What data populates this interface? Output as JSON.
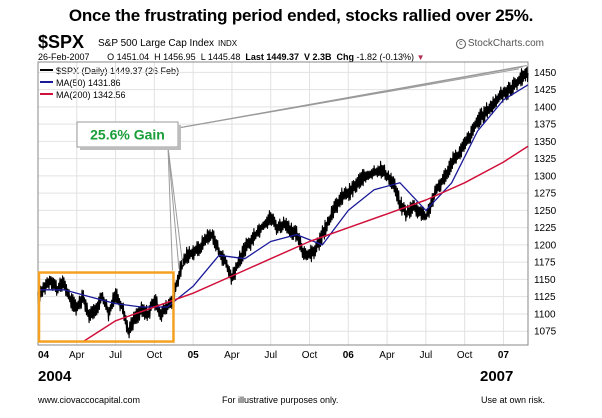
{
  "headline": "Once the frustrating period ended, stocks rallied over 25%.",
  "header": {
    "symbol": "$SPX",
    "name": "S&P 500 Large Cap Index",
    "exchange": "INDX",
    "brand": "StockCharts.com",
    "date": "26-Feb-2007",
    "open": "O 1451.04",
    "high": "H 1456.95",
    "low": "L 1445.48",
    "last": "Last 1449.37",
    "volume": "V 2.3B",
    "change_label": "Chg",
    "change": "-1.82 (-0.13%)"
  },
  "legend": {
    "price": "$SPX (Daily) 1449.37 (26 Feb)",
    "ma50": "MA(50) 1431.86",
    "ma200": "MA(200) 1342.56"
  },
  "annotation": "25.6% Gain",
  "year_start": "2004",
  "year_end": "2007",
  "footer": {
    "left": "www.ciovaccocapital.com",
    "center": "For illustrative purposes only.",
    "right": "Use at own risk."
  },
  "colors": {
    "price": "#000000",
    "ma50": "#1a1a99",
    "ma200": "#d0103a",
    "highlight": "#f5a020",
    "gain_text": "#1a9e3a"
  },
  "chart_data": {
    "type": "line",
    "title": "Once the frustrating period ended, stocks rallied over 25%.",
    "ylim": [
      1055,
      1465
    ],
    "y_ticks": [
      1075,
      1100,
      1125,
      1150,
      1175,
      1200,
      1225,
      1250,
      1275,
      1300,
      1325,
      1350,
      1375,
      1400,
      1425,
      1450
    ],
    "x_ticks": [
      "04",
      "Apr",
      "Jul",
      "Oct",
      "05",
      "Apr",
      "Jul",
      "Oct",
      "06",
      "Apr",
      "Jul",
      "Oct",
      "07"
    ],
    "x_tick_months": [
      0,
      3,
      6,
      9,
      12,
      15,
      18,
      21,
      24,
      27,
      30,
      33,
      36
    ],
    "x_range_months": [
      0,
      37.9
    ],
    "grid": true,
    "highlight_range_months": [
      0,
      10.4
    ],
    "highlight_range_values": [
      1060,
      1160
    ],
    "series": [
      {
        "name": "$SPX (Daily)",
        "x": [
          0,
          0.5,
          1,
          1.5,
          2,
          2.5,
          3,
          3.5,
          4,
          4.5,
          5,
          5.5,
          6,
          6.5,
          7,
          7.5,
          8,
          8.5,
          9,
          9.5,
          10,
          10.5,
          11,
          11.5,
          12,
          12.5,
          13,
          13.5,
          14,
          14.5,
          15,
          15.5,
          16,
          16.5,
          17,
          17.5,
          18,
          18.5,
          19,
          19.5,
          20,
          20.5,
          21,
          21.5,
          22,
          22.5,
          23,
          23.5,
          24,
          24.5,
          25,
          25.5,
          26,
          26.5,
          27,
          27.5,
          28,
          28.5,
          29,
          29.5,
          30,
          30.5,
          31,
          31.5,
          32,
          32.5,
          33,
          33.5,
          34,
          34.5,
          35,
          35.5,
          36,
          36.5,
          37,
          37.5,
          37.9
        ],
        "values": [
          1120,
          1140,
          1150,
          1135,
          1145,
          1120,
          1110,
          1125,
          1095,
          1110,
          1125,
          1100,
          1130,
          1110,
          1075,
          1095,
          1105,
          1100,
          1120,
          1100,
          1110,
          1125,
          1165,
          1185,
          1190,
          1195,
          1210,
          1215,
          1190,
          1175,
          1150,
          1175,
          1195,
          1205,
          1220,
          1230,
          1240,
          1225,
          1230,
          1220,
          1215,
          1190,
          1185,
          1195,
          1215,
          1235,
          1255,
          1270,
          1275,
          1285,
          1295,
          1300,
          1305,
          1310,
          1300,
          1290,
          1260,
          1245,
          1255,
          1250,
          1240,
          1265,
          1285,
          1300,
          1320,
          1330,
          1345,
          1360,
          1380,
          1390,
          1400,
          1410,
          1420,
          1425,
          1435,
          1445,
          1449
        ]
      },
      {
        "name": "MA(50)",
        "x": [
          0,
          2,
          4,
          6,
          8,
          10,
          12,
          14,
          16,
          18,
          20,
          22,
          24,
          26,
          28,
          30,
          32,
          34,
          36,
          37.9
        ],
        "values": [
          1135,
          1135,
          1125,
          1115,
          1110,
          1110,
          1140,
          1185,
          1180,
          1205,
          1215,
          1200,
          1250,
          1280,
          1290,
          1250,
          1290,
          1365,
          1410,
          1432
        ]
      },
      {
        "name": "MA(200)",
        "x": [
          3.5,
          6,
          9,
          12,
          15,
          18,
          21,
          24,
          27,
          30,
          33,
          36,
          37.9
        ],
        "values": [
          1060,
          1090,
          1110,
          1130,
          1155,
          1180,
          1205,
          1225,
          1245,
          1265,
          1290,
          1320,
          1343
        ]
      }
    ]
  }
}
